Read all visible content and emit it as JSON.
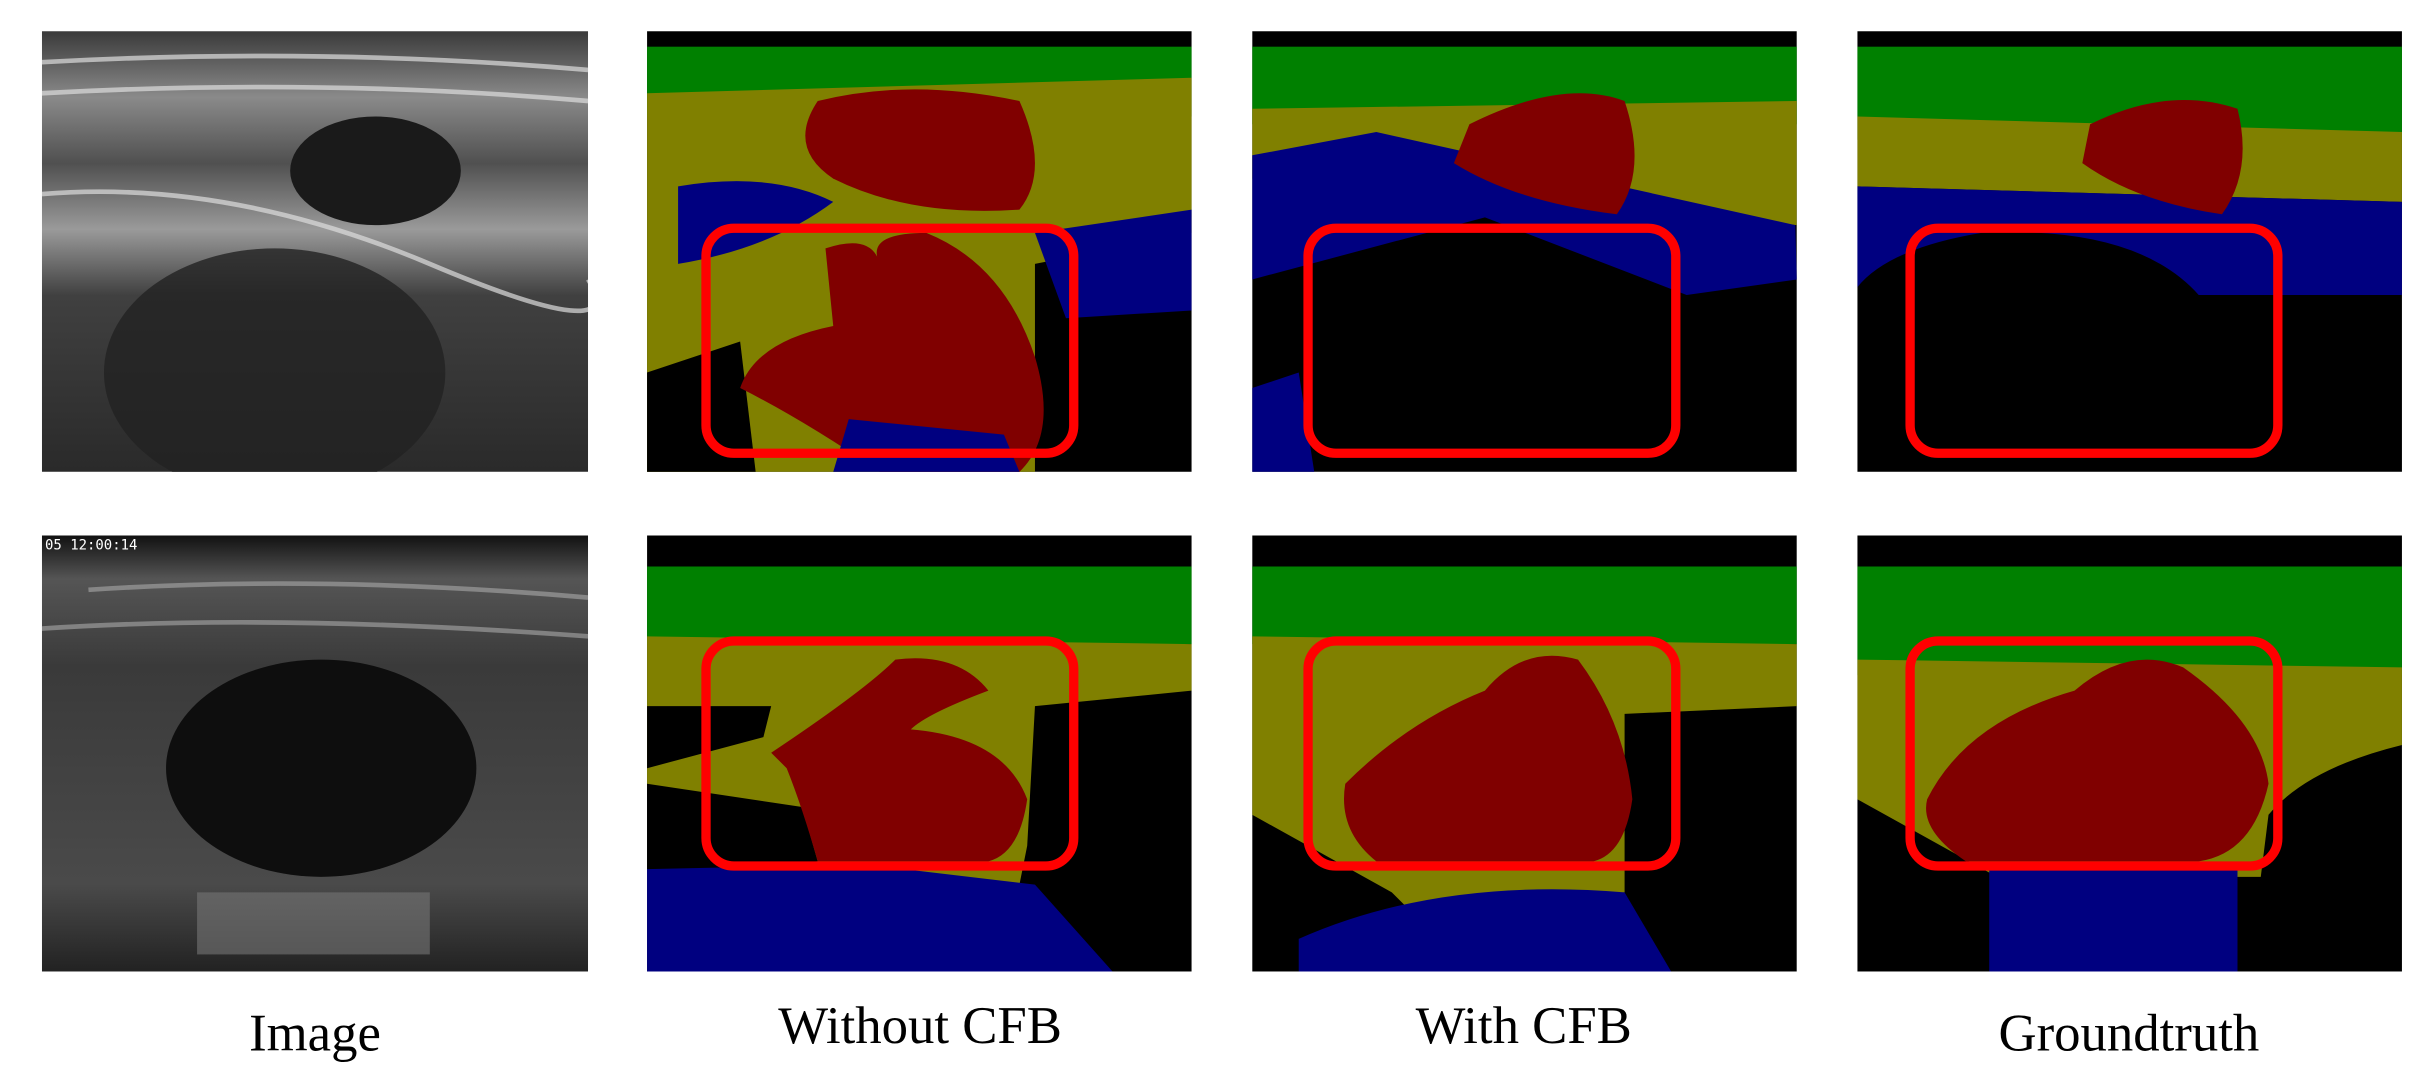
{
  "columns": [
    "Image",
    "Without CFB",
    "With CFB",
    "Groundtruth"
  ],
  "timestamp": "05 12:00:14"
}
